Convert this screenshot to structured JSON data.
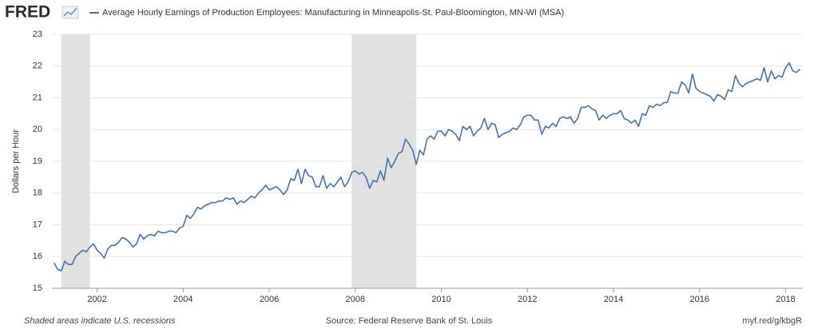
{
  "chart_data": {
    "type": "line",
    "logo": "FRED",
    "ylabel": "Dollars per Hour",
    "footer_left": "Shaded areas indicate U.S. recessions",
    "footer_center": "Source: Federal Reserve Bank of St. Louis",
    "footer_right": "myf.red/g/kbgR",
    "grid": true,
    "xlim": [
      2000.95,
      2018.4
    ],
    "xticks": [
      2002,
      2004,
      2006,
      2008,
      2010,
      2012,
      2014,
      2016,
      2018
    ],
    "ylim": [
      15,
      23
    ],
    "yticks": [
      15,
      16,
      17,
      18,
      19,
      20,
      21,
      22,
      23
    ],
    "recessions": [
      {
        "start": "2001-03",
        "end": "2001-11"
      },
      {
        "start": "2007-12",
        "end": "2009-06"
      }
    ],
    "recession_color": "#e1e1e1",
    "x": [
      "2001-01",
      "2001-02",
      "2001-03",
      "2001-04",
      "2001-05",
      "2001-06",
      "2001-07",
      "2001-08",
      "2001-09",
      "2001-10",
      "2001-11",
      "2001-12",
      "2002-01",
      "2002-02",
      "2002-03",
      "2002-04",
      "2002-05",
      "2002-06",
      "2002-07",
      "2002-08",
      "2002-09",
      "2002-10",
      "2002-11",
      "2002-12",
      "2003-01",
      "2003-02",
      "2003-03",
      "2003-04",
      "2003-05",
      "2003-06",
      "2003-07",
      "2003-08",
      "2003-09",
      "2003-10",
      "2003-11",
      "2003-12",
      "2004-01",
      "2004-02",
      "2004-03",
      "2004-04",
      "2004-05",
      "2004-06",
      "2004-07",
      "2004-08",
      "2004-09",
      "2004-10",
      "2004-11",
      "2004-12",
      "2005-01",
      "2005-02",
      "2005-03",
      "2005-04",
      "2005-05",
      "2005-06",
      "2005-07",
      "2005-08",
      "2005-09",
      "2005-10",
      "2005-11",
      "2005-12",
      "2006-01",
      "2006-02",
      "2006-03",
      "2006-04",
      "2006-05",
      "2006-06",
      "2006-07",
      "2006-08",
      "2006-09",
      "2006-10",
      "2006-11",
      "2006-12",
      "2007-01",
      "2007-02",
      "2007-03",
      "2007-04",
      "2007-05",
      "2007-06",
      "2007-07",
      "2007-08",
      "2007-09",
      "2007-10",
      "2007-11",
      "2007-12",
      "2008-01",
      "2008-02",
      "2008-03",
      "2008-04",
      "2008-05",
      "2008-06",
      "2008-07",
      "2008-08",
      "2008-09",
      "2008-10",
      "2008-11",
      "2008-12",
      "2009-01",
      "2009-02",
      "2009-03",
      "2009-04",
      "2009-05",
      "2009-06",
      "2009-07",
      "2009-08",
      "2009-09",
      "2009-10",
      "2009-11",
      "2009-12",
      "2010-01",
      "2010-02",
      "2010-03",
      "2010-04",
      "2010-05",
      "2010-06",
      "2010-07",
      "2010-08",
      "2010-09",
      "2010-10",
      "2010-11",
      "2010-12",
      "2011-01",
      "2011-02",
      "2011-03",
      "2011-04",
      "2011-05",
      "2011-06",
      "2011-07",
      "2011-08",
      "2011-09",
      "2011-10",
      "2011-11",
      "2011-12",
      "2012-01",
      "2012-02",
      "2012-03",
      "2012-04",
      "2012-05",
      "2012-06",
      "2012-07",
      "2012-08",
      "2012-09",
      "2012-10",
      "2012-11",
      "2012-12",
      "2013-01",
      "2013-02",
      "2013-03",
      "2013-04",
      "2013-05",
      "2013-06",
      "2013-07",
      "2013-08",
      "2013-09",
      "2013-10",
      "2013-11",
      "2013-12",
      "2014-01",
      "2014-02",
      "2014-03",
      "2014-04",
      "2014-05",
      "2014-06",
      "2014-07",
      "2014-08",
      "2014-09",
      "2014-10",
      "2014-11",
      "2014-12",
      "2015-01",
      "2015-02",
      "2015-03",
      "2015-04",
      "2015-05",
      "2015-06",
      "2015-07",
      "2015-08",
      "2015-09",
      "2015-10",
      "2015-11",
      "2015-12",
      "2016-01",
      "2016-02",
      "2016-03",
      "2016-04",
      "2016-05",
      "2016-06",
      "2016-07",
      "2016-08",
      "2016-09",
      "2016-10",
      "2016-11",
      "2016-12",
      "2017-01",
      "2017-02",
      "2017-03",
      "2017-04",
      "2017-05",
      "2017-06",
      "2017-07",
      "2017-08",
      "2017-09",
      "2017-10",
      "2017-11",
      "2017-12",
      "2018-01",
      "2018-02",
      "2018-03",
      "2018-04",
      "2018-05"
    ],
    "series": [
      {
        "name": "Average Hourly Earnings of Production Employees: Manufacturing in Minneapolis-St. Paul-Bloomington, MN-WI (MSA)",
        "color": "#4572a7",
        "values": [
          15.8,
          15.6,
          15.55,
          15.85,
          15.75,
          15.75,
          16.0,
          16.1,
          16.2,
          16.15,
          16.3,
          16.4,
          16.2,
          16.1,
          15.95,
          16.25,
          16.35,
          16.35,
          16.45,
          16.6,
          16.55,
          16.45,
          16.3,
          16.4,
          16.7,
          16.55,
          16.65,
          16.7,
          16.65,
          16.8,
          16.75,
          16.75,
          16.8,
          16.8,
          16.75,
          16.9,
          16.95,
          17.3,
          17.2,
          17.35,
          17.55,
          17.5,
          17.6,
          17.65,
          17.7,
          17.7,
          17.75,
          17.75,
          17.85,
          17.8,
          17.85,
          17.65,
          17.75,
          17.7,
          17.8,
          17.9,
          17.85,
          18.0,
          18.1,
          18.25,
          18.1,
          18.15,
          18.2,
          18.1,
          17.95,
          18.1,
          18.45,
          18.4,
          18.75,
          18.3,
          18.75,
          18.55,
          18.5,
          18.2,
          18.2,
          18.55,
          18.15,
          18.3,
          18.2,
          18.35,
          18.5,
          18.2,
          18.35,
          18.65,
          18.7,
          18.6,
          18.65,
          18.5,
          18.15,
          18.4,
          18.35,
          18.7,
          18.4,
          19.1,
          18.8,
          19.0,
          19.25,
          19.3,
          19.7,
          19.55,
          19.35,
          18.9,
          19.35,
          19.2,
          19.7,
          19.8,
          19.7,
          19.95,
          19.95,
          19.8,
          20.0,
          19.95,
          19.85,
          19.65,
          20.1,
          20.0,
          20.1,
          19.8,
          19.95,
          20.05,
          20.35,
          20.0,
          20.2,
          20.15,
          19.75,
          19.85,
          19.9,
          19.95,
          20.05,
          20.0,
          20.15,
          20.4,
          20.45,
          20.45,
          20.3,
          20.3,
          19.85,
          20.1,
          20.05,
          20.2,
          20.1,
          20.35,
          20.4,
          20.35,
          20.4,
          20.2,
          20.35,
          20.7,
          20.7,
          20.75,
          20.65,
          20.6,
          20.3,
          20.45,
          20.35,
          20.45,
          20.5,
          20.5,
          20.6,
          20.35,
          20.3,
          20.2,
          20.3,
          20.1,
          20.5,
          20.45,
          20.75,
          20.7,
          20.8,
          20.75,
          20.85,
          20.85,
          21.2,
          21.15,
          21.15,
          21.5,
          21.4,
          21.15,
          21.75,
          21.3,
          21.2,
          21.15,
          21.1,
          21.05,
          20.9,
          21.1,
          21.05,
          20.95,
          21.25,
          21.2,
          21.7,
          21.45,
          21.35,
          21.45,
          21.5,
          21.55,
          21.6,
          21.55,
          21.95,
          21.5,
          21.85,
          21.6,
          21.7,
          21.65,
          21.95,
          22.1,
          21.85,
          21.8,
          21.9
        ]
      }
    ]
  }
}
